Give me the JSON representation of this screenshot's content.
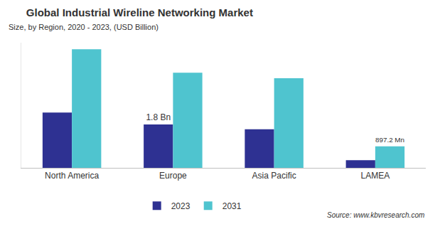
{
  "chart_data": {
    "type": "bar",
    "title": "Global Industrial Wireline Networking Market",
    "subtitle": "Size, by Region, 2020 - 2023, (USD Billion)",
    "annotations": [
      "Source: www.kbvresearch.com"
    ],
    "categories": [
      "North America",
      "Europe",
      "Asia Pacific",
      "LAMEA"
    ],
    "series": [
      {
        "name": "2023",
        "color": "#2e3192",
        "values": [
          2.3,
          1.8,
          1.6,
          0.32
        ],
        "value_labels": [
          null,
          "1.8 Bn",
          null,
          null
        ]
      },
      {
        "name": "2031",
        "color": "#4fc4cf",
        "values": [
          4.93,
          3.95,
          3.72,
          0.8972
        ],
        "value_labels": [
          null,
          null,
          null,
          "897.2 Mn"
        ]
      }
    ],
    "ylim": [
      0,
      5.2
    ],
    "yticks": [],
    "grid": false,
    "legend": "bottom",
    "data_labels": true,
    "tick_labels": "x"
  }
}
